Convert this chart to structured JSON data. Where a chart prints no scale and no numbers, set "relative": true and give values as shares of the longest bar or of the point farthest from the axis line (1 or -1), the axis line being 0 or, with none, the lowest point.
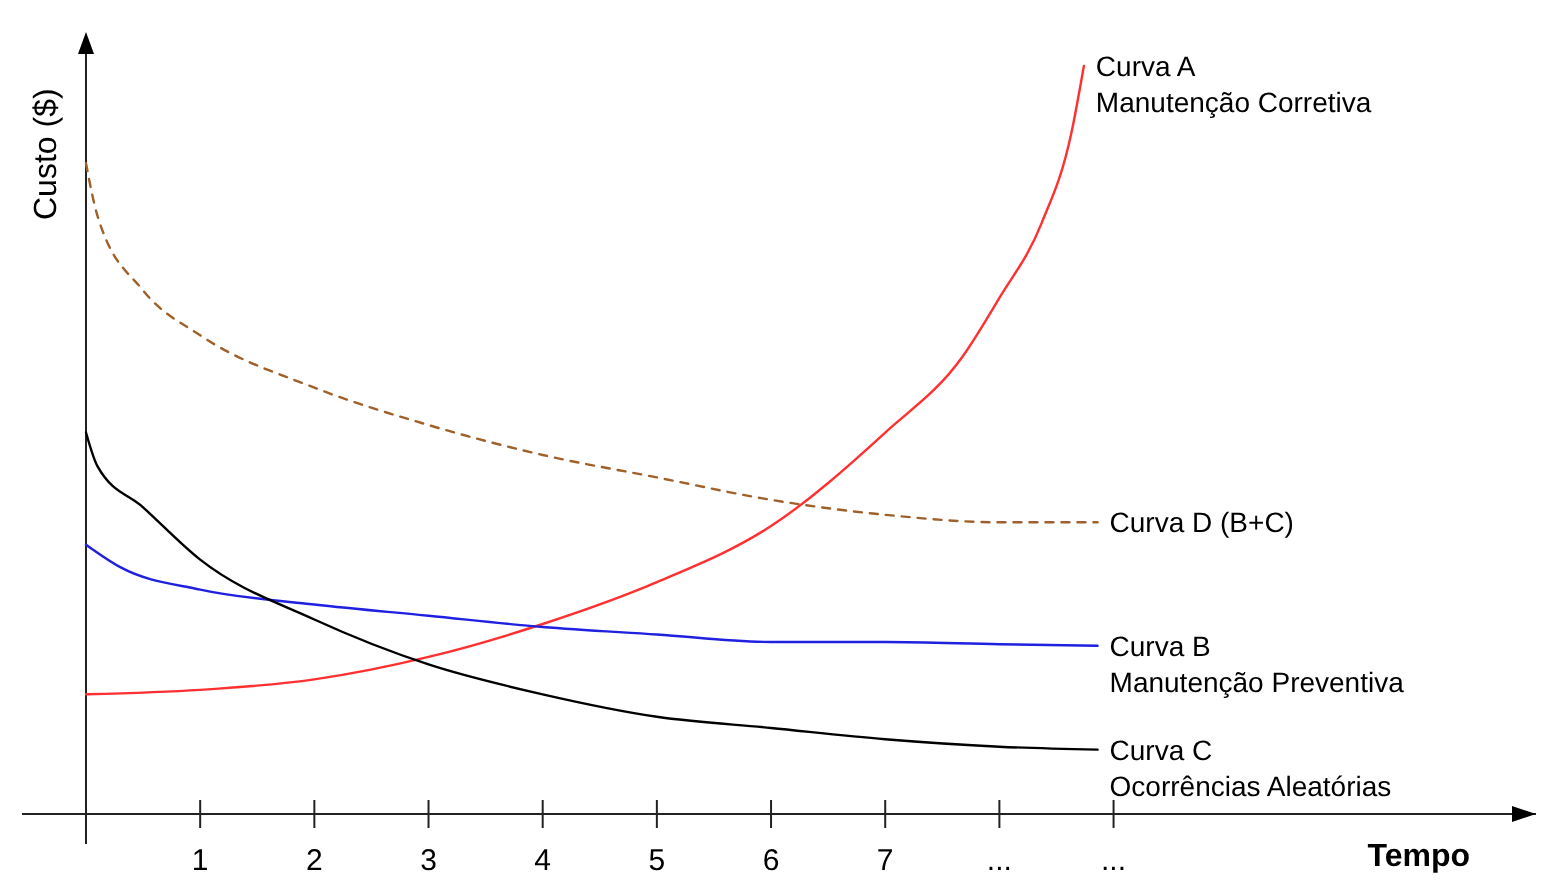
{
  "chart_data": {
    "type": "line",
    "relative": true,
    "xlabel": "Tempo",
    "ylabel": "Custo ($)",
    "xlim": [
      0,
      12.7
    ],
    "xticks": [
      {
        "value": 0,
        "label": null
      },
      1,
      2,
      3,
      4,
      5,
      6,
      7,
      {
        "value": 8,
        "label": "..."
      },
      {
        "value": 9,
        "label": "..."
      }
    ],
    "series": [
      {
        "name": "Curva A\nManutenção Corretiva",
        "color": "#ff3030",
        "x": [
          0,
          1,
          2,
          3,
          4,
          5,
          6,
          7,
          7.67,
          8,
          8.37,
          8.63,
          8.74
        ],
        "values": [
          0.16,
          0.166,
          0.18,
          0.21,
          0.254,
          0.31,
          0.385,
          0.51,
          0.61,
          0.69,
          0.79,
          0.91,
          1
        ]
      },
      {
        "name": "Curva D (B+C)",
        "color": "#a0602a",
        "line_style": "dashed",
        "x": [
          0,
          0.1,
          0.5,
          1,
          2,
          3,
          4,
          5,
          6,
          7,
          8,
          8.86
        ],
        "values": [
          0.87,
          0.8,
          0.7,
          0.64,
          0.57,
          0.52,
          0.48,
          0.45,
          0.42,
          0.4,
          0.39,
          0.39
        ]
      },
      {
        "name": "Curva B\nManutenção Preventiva",
        "color": "#2020e0",
        "x": [
          0,
          0.3,
          1,
          2,
          3,
          4,
          5,
          6,
          7,
          8,
          8.86
        ],
        "values": [
          0.36,
          0.33,
          0.3,
          0.28,
          0.265,
          0.25,
          0.24,
          0.23,
          0.23,
          0.227,
          0.225
        ]
      },
      {
        "name": "Curva C\nOcorrências Aleatórias",
        "color": "#000000",
        "x": [
          0,
          0.1,
          0.5,
          1,
          2,
          3,
          4,
          5,
          6,
          7,
          8,
          8.86
        ],
        "values": [
          0.51,
          0.465,
          0.41,
          0.34,
          0.26,
          0.2,
          0.16,
          0.13,
          0.115,
          0.1,
          0.09,
          0.086
        ]
      }
    ]
  }
}
